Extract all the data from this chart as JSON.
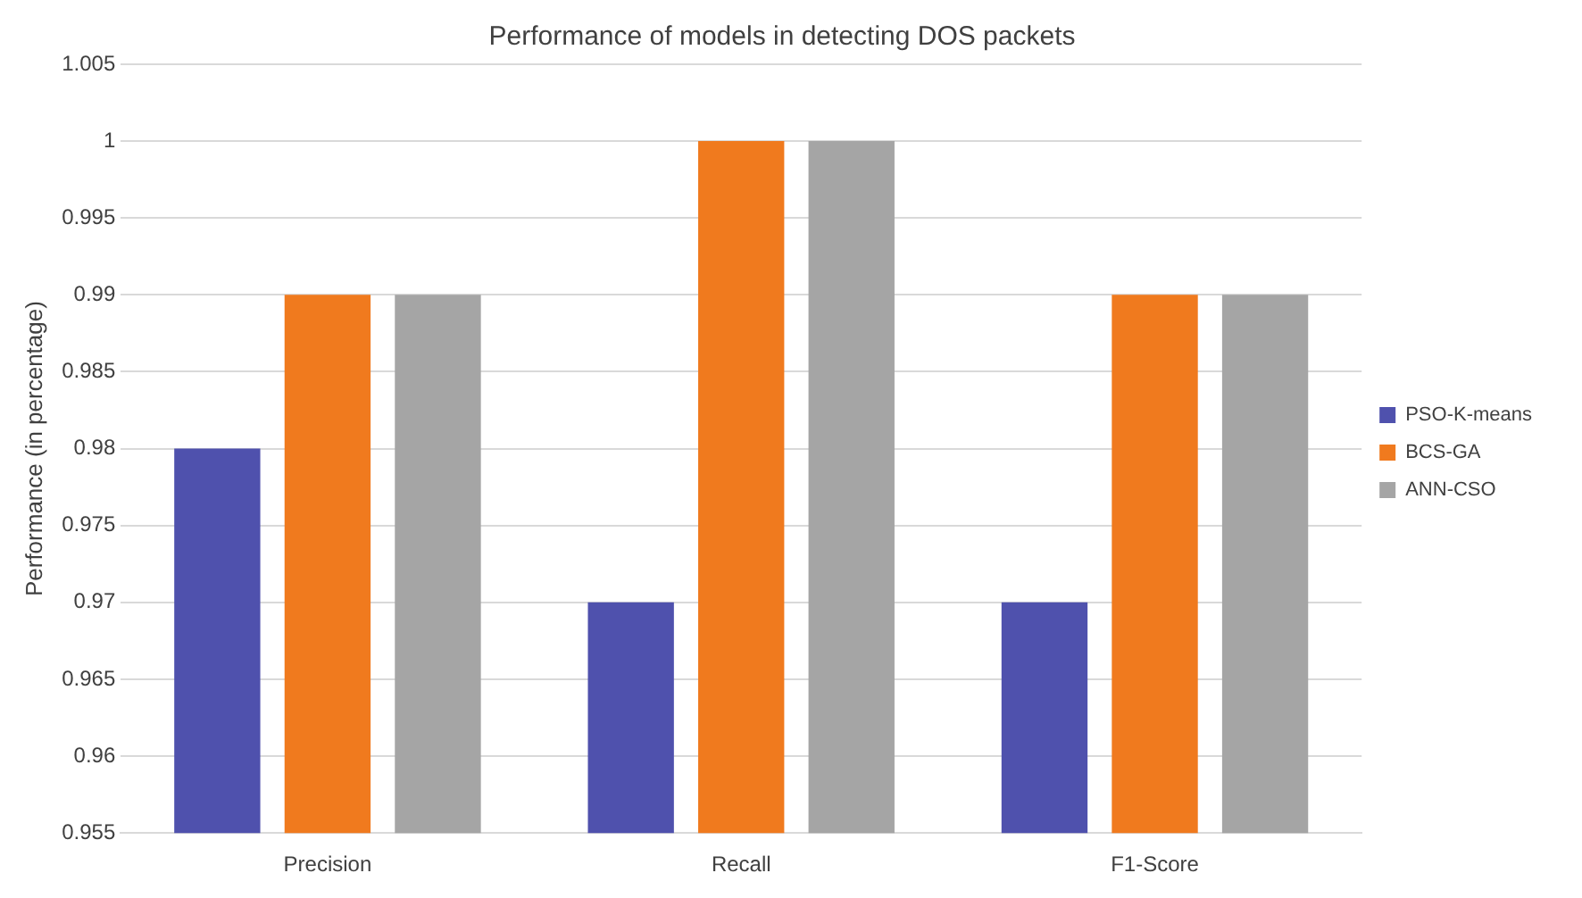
{
  "chart_data": {
    "type": "bar",
    "title": "Performance of models in detecting DOS packets",
    "ylabel": "Performance (in percentage)",
    "categories": [
      "Precision",
      "Recall",
      "F1-Score"
    ],
    "series": [
      {
        "name": "PSO-K-means",
        "color": "#4f51ad",
        "values": [
          0.98,
          0.97,
          0.97
        ]
      },
      {
        "name": "BCS-GA",
        "color": "#f07a1e",
        "values": [
          0.99,
          1,
          0.99
        ]
      },
      {
        "name": "ANN-CSO",
        "color": "#a5a5a5",
        "values": [
          0.99,
          1,
          0.99
        ]
      }
    ],
    "ylim": [
      0.955,
      1.005
    ],
    "yticks": [
      0.955,
      0.96,
      0.965,
      0.97,
      0.975,
      0.98,
      0.985,
      0.99,
      0.995,
      1,
      1.005
    ],
    "grid": "y",
    "legend": "right"
  }
}
